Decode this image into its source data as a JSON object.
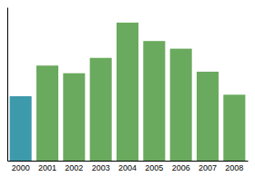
{
  "chart_data": {
    "type": "bar",
    "categories": [
      "2000",
      "2001",
      "2002",
      "2003",
      "2004",
      "2005",
      "2006",
      "2007",
      "2008"
    ],
    "values": [
      42,
      62,
      57,
      67,
      90,
      78,
      73,
      58,
      43
    ],
    "colors": [
      "#3d9aaa",
      "#6aaa5e",
      "#6aaa5e",
      "#6aaa5e",
      "#6aaa5e",
      "#6aaa5e",
      "#6aaa5e",
      "#6aaa5e",
      "#6aaa5e"
    ],
    "ylim": [
      0,
      100
    ],
    "grid": false,
    "tick_labels": "x"
  }
}
